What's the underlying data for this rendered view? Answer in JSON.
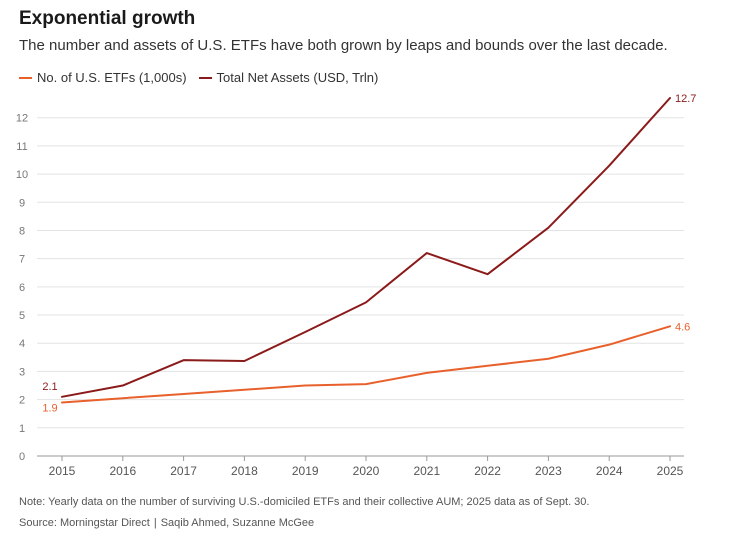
{
  "header": {
    "title": "Exponential growth",
    "subtitle": "The number and assets of U.S. ETFs have both grown by leaps and bounds over the last decade."
  },
  "legend": {
    "items": [
      {
        "label": "No. of U.S. ETFs (1,000s)",
        "color": "#e8602c"
      },
      {
        "label": "Total Net Assets (USD, Trln)",
        "color": "#8b1a1a"
      }
    ]
  },
  "chart_data": {
    "type": "line",
    "title": "Exponential growth",
    "xlabel": "",
    "ylabel": "",
    "x": [
      "2015",
      "2016",
      "2017",
      "2018",
      "2019",
      "2020",
      "2021",
      "2022",
      "2023",
      "2024",
      "2025"
    ],
    "ylim": [
      0,
      12.7
    ],
    "yticks": [
      "0",
      "1",
      "2",
      "3",
      "4",
      "5",
      "6",
      "7",
      "8",
      "9",
      "10",
      "11",
      "12"
    ],
    "grid": true,
    "legend_position": "top-left",
    "series": [
      {
        "name": "No. of U.S. ETFs (1,000s)",
        "color": "#e8602c",
        "values": [
          1.9,
          2.05,
          2.2,
          2.35,
          2.5,
          2.55,
          2.95,
          3.2,
          3.45,
          3.95,
          4.6
        ],
        "start_label": "1.9",
        "end_label": "4.6"
      },
      {
        "name": "Total Net Assets (USD, Trln)",
        "color": "#8b1a1a",
        "values": [
          2.1,
          2.5,
          3.4,
          3.37,
          4.4,
          5.45,
          7.2,
          6.45,
          8.1,
          10.3,
          12.7
        ],
        "start_label": "2.1",
        "end_label": "12.7"
      }
    ]
  },
  "footer": {
    "note": "Note: Yearly data on the number of surviving U.S.-domiciled ETFs and their collective AUM; 2025 data as of Sept. 30.",
    "source": "Source: Morningstar Direct",
    "separator": "|",
    "authors": "Saqib Ahmed, Suzanne McGee"
  }
}
